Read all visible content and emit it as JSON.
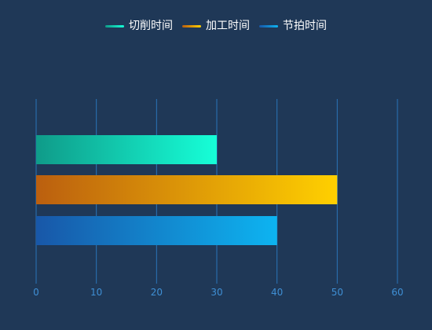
{
  "chart_data": {
    "type": "bar",
    "orientation": "horizontal",
    "series": [
      {
        "name": "切削时间",
        "values": [
          30
        ],
        "color": "#16ffd8",
        "gradient": [
          "#0f9b89",
          "#16ffd8"
        ]
      },
      {
        "name": "加工时间",
        "values": [
          50
        ],
        "color": "#ffd000",
        "gradient": [
          "#bb5f0f",
          "#ffd000"
        ]
      },
      {
        "name": "节拍时间",
        "values": [
          40
        ],
        "color": "#0db4f1",
        "gradient": [
          "#1857a8",
          "#0db4f1"
        ]
      }
    ],
    "categories": [
      ""
    ],
    "xlim": [
      0,
      60
    ],
    "xticks": [
      0,
      10,
      20,
      30,
      40,
      50,
      60
    ],
    "grid": true,
    "legend": "top-center"
  },
  "colors": {
    "background": "#1f3857",
    "grid": "#2a74b8",
    "tick_label": "#3f8fd4",
    "legend_text": "#ffffff"
  }
}
